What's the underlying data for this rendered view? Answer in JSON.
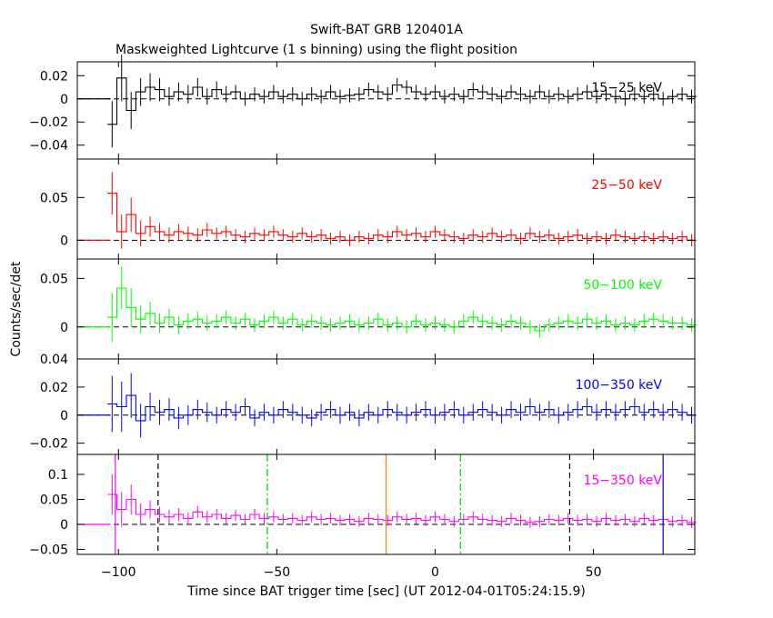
{
  "figure": {
    "title": "Swift-BAT GRB 120401A",
    "subtitle": "Maskweighted Lightcurve (1 s binning) using the flight position",
    "xlabel": "Time since BAT trigger time [sec] (UT 2012-04-01T05:24:15.9)",
    "ylabel": "Counts/sec/det"
  },
  "chart_data": {
    "type": "line",
    "title": "Swift-BAT GRB 120401A",
    "subtitle": "Maskweighted Lightcurve (1 s binning) using the flight position",
    "xlabel": "Time since BAT trigger time [sec] (UT 2012-04-01T05:24:15.9)",
    "ylabel": "Counts/sec/det",
    "xlim": [
      -113,
      82
    ],
    "xticks": [
      -100,
      -50,
      0,
      50
    ],
    "xtick_labels": [
      "−100",
      "−50",
      "0",
      "50"
    ],
    "data_start": -102.5,
    "grid": false,
    "panels": [
      {
        "name": "15−25 keV",
        "color": "#000000",
        "ylim": [
          -0.052,
          0.032
        ],
        "yticks": [
          0.02,
          0,
          -0.02,
          -0.04
        ],
        "ytick_labels": [
          "0.02",
          "0",
          "−0.02",
          "−0.04"
        ],
        "x": [
          -102,
          -99,
          -96,
          -93,
          -90,
          -87,
          -84,
          -81,
          -78,
          -75,
          -72,
          -69,
          -66,
          -63,
          -60,
          -57,
          -54,
          -51,
          -48,
          -45,
          -42,
          -39,
          -36,
          -33,
          -30,
          -27,
          -24,
          -21,
          -18,
          -15,
          -12,
          -9,
          -6,
          -3,
          0,
          3,
          6,
          9,
          12,
          15,
          18,
          21,
          24,
          27,
          30,
          33,
          36,
          39,
          42,
          45,
          48,
          51,
          54,
          57,
          60,
          63,
          66,
          69,
          72,
          75,
          78,
          81
        ],
        "y": [
          -0.022,
          0.018,
          -0.01,
          0.006,
          0.01,
          0.008,
          0.002,
          0.006,
          0.004,
          0.01,
          0.002,
          0.008,
          0.004,
          0.006,
          0.0,
          0.004,
          0.002,
          0.006,
          0.002,
          0.004,
          0.0,
          0.004,
          0.002,
          0.006,
          0.002,
          0.003,
          0.004,
          0.008,
          0.006,
          0.004,
          0.012,
          0.01,
          0.006,
          0.004,
          0.006,
          0.002,
          0.004,
          0.002,
          0.008,
          0.006,
          0.004,
          0.002,
          0.006,
          0.004,
          0.002,
          0.006,
          0.002,
          0.004,
          0.002,
          0.004,
          0.006,
          0.002,
          0.004,
          0.002,
          0.0,
          0.004,
          0.002,
          0.004,
          0.0,
          0.002,
          0.004,
          0.002
        ],
        "err": [
          0.02,
          0.02,
          0.016,
          0.012,
          0.012,
          0.01,
          0.008,
          0.008,
          0.008,
          0.008,
          0.007,
          0.007,
          0.007,
          0.006,
          0.006,
          0.006,
          0.006,
          0.006,
          0.006,
          0.006,
          0.006,
          0.006,
          0.006,
          0.006,
          0.006,
          0.006,
          0.006,
          0.006,
          0.006,
          0.006,
          0.006,
          0.006,
          0.006,
          0.006,
          0.006,
          0.006,
          0.006,
          0.006,
          0.006,
          0.006,
          0.006,
          0.006,
          0.006,
          0.006,
          0.006,
          0.006,
          0.006,
          0.006,
          0.006,
          0.006,
          0.006,
          0.006,
          0.006,
          0.006,
          0.006,
          0.006,
          0.006,
          0.006,
          0.006,
          0.006,
          0.006,
          0.006
        ]
      },
      {
        "name": "25−50 keV",
        "color": "#ff0000",
        "ylim": [
          -0.022,
          0.095
        ],
        "yticks": [
          0.05,
          0
        ],
        "ytick_labels": [
          "0.05",
          "0"
        ],
        "x": [
          -102,
          -99,
          -96,
          -93,
          -90,
          -87,
          -84,
          -81,
          -78,
          -75,
          -72,
          -69,
          -66,
          -63,
          -60,
          -57,
          -54,
          -51,
          -48,
          -45,
          -42,
          -39,
          -36,
          -33,
          -30,
          -27,
          -24,
          -21,
          -18,
          -15,
          -12,
          -9,
          -6,
          -3,
          0,
          3,
          6,
          9,
          12,
          15,
          18,
          21,
          24,
          27,
          30,
          33,
          36,
          39,
          42,
          45,
          48,
          51,
          54,
          57,
          60,
          63,
          66,
          69,
          72,
          75,
          78,
          81
        ],
        "y": [
          0.055,
          0.01,
          0.03,
          0.008,
          0.016,
          0.01,
          0.006,
          0.01,
          0.008,
          0.006,
          0.012,
          0.008,
          0.01,
          0.006,
          0.004,
          0.008,
          0.006,
          0.01,
          0.006,
          0.004,
          0.008,
          0.004,
          0.006,
          0.002,
          0.004,
          0.0,
          0.004,
          0.002,
          0.006,
          0.004,
          0.01,
          0.006,
          0.008,
          0.004,
          0.01,
          0.006,
          0.004,
          0.002,
          0.006,
          0.004,
          0.008,
          0.004,
          0.006,
          0.002,
          0.008,
          0.004,
          0.006,
          0.002,
          0.004,
          0.006,
          0.002,
          0.004,
          0.002,
          0.006,
          0.004,
          0.002,
          0.004,
          0.002,
          0.004,
          0.002,
          0.004,
          0.0
        ],
        "err": [
          0.025,
          0.02,
          0.02,
          0.015,
          0.012,
          0.01,
          0.009,
          0.009,
          0.008,
          0.008,
          0.008,
          0.007,
          0.007,
          0.007,
          0.007,
          0.007,
          0.007,
          0.007,
          0.007,
          0.007,
          0.007,
          0.007,
          0.007,
          0.007,
          0.007,
          0.007,
          0.007,
          0.007,
          0.007,
          0.007,
          0.007,
          0.007,
          0.007,
          0.007,
          0.007,
          0.007,
          0.007,
          0.007,
          0.007,
          0.007,
          0.007,
          0.007,
          0.007,
          0.007,
          0.007,
          0.007,
          0.007,
          0.007,
          0.007,
          0.007,
          0.007,
          0.007,
          0.007,
          0.007,
          0.007,
          0.007,
          0.007,
          0.007,
          0.007,
          0.007,
          0.007,
          0.007
        ]
      },
      {
        "name": "50−100 keV",
        "color": "#00ff00",
        "ylim": [
          -0.033,
          0.07
        ],
        "yticks": [
          0.05,
          0
        ],
        "ytick_labels": [
          "0.05",
          "0"
        ],
        "x": [
          -102,
          -99,
          -96,
          -93,
          -90,
          -87,
          -84,
          -81,
          -78,
          -75,
          -72,
          -69,
          -66,
          -63,
          -60,
          -57,
          -54,
          -51,
          -48,
          -45,
          -42,
          -39,
          -36,
          -33,
          -30,
          -27,
          -24,
          -21,
          -18,
          -15,
          -12,
          -9,
          -6,
          -3,
          0,
          3,
          6,
          9,
          12,
          15,
          18,
          21,
          24,
          27,
          30,
          33,
          36,
          39,
          42,
          45,
          48,
          51,
          54,
          57,
          60,
          63,
          66,
          69,
          72,
          75,
          78,
          81
        ],
        "y": [
          0.01,
          0.04,
          0.02,
          0.008,
          0.014,
          0.004,
          0.01,
          0.002,
          0.006,
          0.008,
          0.004,
          0.006,
          0.01,
          0.004,
          0.008,
          0.002,
          0.006,
          0.01,
          0.004,
          0.008,
          0.002,
          0.006,
          0.004,
          0.002,
          0.004,
          0.006,
          0.002,
          0.004,
          0.008,
          0.002,
          0.004,
          0.0,
          0.006,
          0.002,
          0.004,
          0.002,
          0.0,
          0.006,
          0.01,
          0.006,
          0.004,
          0.002,
          0.006,
          0.004,
          0.0,
          -0.004,
          0.002,
          0.004,
          0.006,
          0.004,
          0.008,
          0.004,
          0.006,
          0.002,
          0.004,
          0.002,
          0.006,
          0.008,
          0.006,
          0.004,
          0.004,
          0.002
        ],
        "err": [
          0.025,
          0.022,
          0.02,
          0.014,
          0.012,
          0.01,
          0.009,
          0.009,
          0.008,
          0.008,
          0.008,
          0.007,
          0.007,
          0.007,
          0.007,
          0.007,
          0.007,
          0.007,
          0.007,
          0.007,
          0.007,
          0.007,
          0.007,
          0.007,
          0.007,
          0.007,
          0.007,
          0.007,
          0.007,
          0.007,
          0.007,
          0.007,
          0.007,
          0.007,
          0.007,
          0.007,
          0.007,
          0.007,
          0.007,
          0.007,
          0.007,
          0.007,
          0.007,
          0.007,
          0.007,
          0.007,
          0.007,
          0.007,
          0.007,
          0.007,
          0.007,
          0.007,
          0.007,
          0.007,
          0.007,
          0.007,
          0.007,
          0.007,
          0.007,
          0.007,
          0.007,
          0.007
        ]
      },
      {
        "name": "100−350 keV",
        "color": "#0000ff",
        "ylim": [
          -0.028,
          0.04
        ],
        "yticks": [
          0.04,
          0.02,
          0,
          -0.02
        ],
        "ytick_labels": [
          "0.04",
          "0.02",
          "0",
          "−0.02"
        ],
        "x": [
          -102,
          -99,
          -96,
          -93,
          -90,
          -87,
          -84,
          -81,
          -78,
          -75,
          -72,
          -69,
          -66,
          -63,
          -60,
          -57,
          -54,
          -51,
          -48,
          -45,
          -42,
          -39,
          -36,
          -33,
          -30,
          -27,
          -24,
          -21,
          -18,
          -15,
          -12,
          -9,
          -6,
          -3,
          0,
          3,
          6,
          9,
          12,
          15,
          18,
          21,
          24,
          27,
          30,
          33,
          36,
          39,
          42,
          45,
          48,
          51,
          54,
          57,
          60,
          63,
          66,
          69,
          72,
          75,
          78,
          81
        ],
        "y": [
          0.008,
          0.006,
          0.014,
          -0.004,
          0.006,
          0.002,
          0.004,
          -0.002,
          0.0,
          0.004,
          0.002,
          0.0,
          0.004,
          0.002,
          0.006,
          -0.002,
          0.002,
          0.0,
          0.004,
          0.002,
          0.0,
          -0.002,
          0.002,
          0.004,
          0.0,
          0.002,
          -0.002,
          0.002,
          0.0,
          0.004,
          0.002,
          0.0,
          0.002,
          0.004,
          0.0,
          0.002,
          0.004,
          0.0,
          0.002,
          0.004,
          0.002,
          0.0,
          0.004,
          0.002,
          0.006,
          0.002,
          0.004,
          0.0,
          0.002,
          0.004,
          0.006,
          0.002,
          0.004,
          0.002,
          0.004,
          0.006,
          0.002,
          0.004,
          0.002,
          0.004,
          0.002,
          0.0
        ],
        "err": [
          0.02,
          0.018,
          0.016,
          0.012,
          0.01,
          0.009,
          0.008,
          0.008,
          0.007,
          0.007,
          0.007,
          0.006,
          0.006,
          0.006,
          0.006,
          0.006,
          0.006,
          0.006,
          0.006,
          0.006,
          0.006,
          0.006,
          0.006,
          0.006,
          0.006,
          0.006,
          0.006,
          0.006,
          0.006,
          0.006,
          0.006,
          0.006,
          0.006,
          0.006,
          0.006,
          0.006,
          0.006,
          0.006,
          0.006,
          0.006,
          0.006,
          0.006,
          0.006,
          0.006,
          0.006,
          0.006,
          0.006,
          0.006,
          0.006,
          0.006,
          0.006,
          0.006,
          0.006,
          0.006,
          0.006,
          0.006,
          0.006,
          0.006,
          0.006,
          0.006,
          0.006,
          0.006
        ]
      },
      {
        "name": "15−350 keV",
        "color": "#ff00ff",
        "ylim": [
          -0.06,
          0.14
        ],
        "yticks": [
          0.1,
          0.05,
          0,
          -0.05
        ],
        "ytick_labels": [
          "0.1",
          "0.05",
          "0",
          "−0.05"
        ],
        "x": [
          -102,
          -99,
          -96,
          -93,
          -90,
          -87,
          -84,
          -81,
          -78,
          -75,
          -72,
          -69,
          -66,
          -63,
          -60,
          -57,
          -54,
          -51,
          -48,
          -45,
          -42,
          -39,
          -36,
          -33,
          -30,
          -27,
          -24,
          -21,
          -18,
          -15,
          -12,
          -9,
          -6,
          -3,
          0,
          3,
          6,
          9,
          12,
          15,
          18,
          21,
          24,
          27,
          30,
          33,
          36,
          39,
          42,
          45,
          48,
          51,
          54,
          57,
          60,
          63,
          66,
          69,
          72,
          75,
          78,
          81
        ],
        "y": [
          0.06,
          0.03,
          0.05,
          0.02,
          0.03,
          0.02,
          0.015,
          0.02,
          0.012,
          0.025,
          0.015,
          0.02,
          0.012,
          0.018,
          0.01,
          0.02,
          0.012,
          0.015,
          0.01,
          0.012,
          0.008,
          0.015,
          0.01,
          0.012,
          0.008,
          0.01,
          0.006,
          0.012,
          0.01,
          0.008,
          0.015,
          0.01,
          0.012,
          0.008,
          0.015,
          0.01,
          0.006,
          0.01,
          0.015,
          0.01,
          0.008,
          0.006,
          0.012,
          0.008,
          0.004,
          0.006,
          0.01,
          0.008,
          0.012,
          0.008,
          0.01,
          0.006,
          0.012,
          0.008,
          0.01,
          0.006,
          0.012,
          0.008,
          0.01,
          0.006,
          0.008,
          0.004
        ],
        "err": [
          0.04,
          0.035,
          0.03,
          0.022,
          0.018,
          0.015,
          0.014,
          0.013,
          0.012,
          0.012,
          0.012,
          0.011,
          0.011,
          0.011,
          0.011,
          0.011,
          0.011,
          0.011,
          0.011,
          0.011,
          0.011,
          0.011,
          0.011,
          0.011,
          0.011,
          0.011,
          0.011,
          0.011,
          0.011,
          0.011,
          0.011,
          0.011,
          0.011,
          0.011,
          0.011,
          0.011,
          0.011,
          0.011,
          0.011,
          0.011,
          0.011,
          0.011,
          0.011,
          0.011,
          0.011,
          0.011,
          0.011,
          0.011,
          0.011,
          0.011,
          0.011,
          0.011,
          0.011,
          0.011,
          0.011,
          0.011,
          0.011,
          0.011,
          0.011,
          0.011,
          0.011,
          0.011
        ],
        "markers": [
          {
            "x": -87.5,
            "color": "#000000",
            "style": "dashed"
          },
          {
            "x": 42.5,
            "color": "#000000",
            "style": "dashed"
          },
          {
            "x": -53.0,
            "color": "#00cc00",
            "style": "dashdot"
          },
          {
            "x": 8.0,
            "color": "#00cc00",
            "style": "dashdot"
          },
          {
            "x": -15.5,
            "color": "#ff8000",
            "style": "solid"
          },
          {
            "x": 72.0,
            "color": "#0000cc",
            "style": "solid"
          },
          {
            "x": -101.0,
            "color": "#ff00ff",
            "style": "solid"
          }
        ]
      }
    ]
  }
}
